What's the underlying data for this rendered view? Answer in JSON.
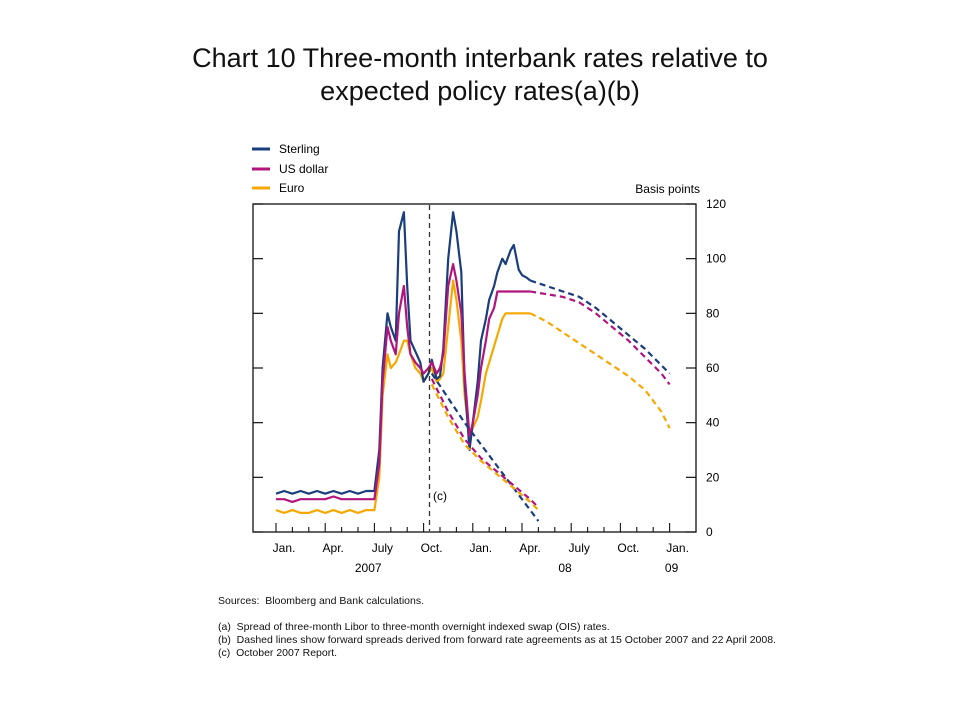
{
  "title_line1": "Chart 10  Three-month interbank rates relative to",
  "title_line2": "expected policy rates(a)(b)",
  "chart_data": {
    "type": "line",
    "ylabel": "Basis points",
    "ylim": [
      0,
      120
    ],
    "yticks": [
      0,
      20,
      40,
      60,
      80,
      100,
      120
    ],
    "x_axis": {
      "month_labels": [
        "Jan.",
        "Apr.",
        "July",
        "Oct.",
        "Jan.",
        "Apr.",
        "July",
        "Oct.",
        "Jan."
      ],
      "year_labels": [
        "2007",
        "08",
        "09"
      ]
    },
    "legend": {
      "placement": "top-left"
    },
    "annotation": "(c)",
    "series": [
      {
        "name": "Sterling",
        "color": "#1a3d7c",
        "x": [
          0,
          0.5,
          1,
          1.5,
          2,
          2.5,
          3,
          3.5,
          4,
          4.5,
          5,
          5.5,
          6,
          6.3,
          6.5,
          6.8,
          7,
          7.3,
          7.5,
          7.8,
          8,
          8.2,
          8.5,
          8.8,
          9,
          9.3,
          9.5,
          9.8,
          10,
          10.2,
          10.5,
          10.8,
          11,
          11.3,
          11.5,
          11.8,
          12,
          12.3,
          12.5,
          12.8,
          13,
          13.3,
          13.5,
          13.8,
          14,
          14.3,
          14.5,
          14.8,
          15,
          15.3,
          15.5
        ],
        "y": [
          14,
          15,
          14,
          15,
          14,
          15,
          14,
          15,
          14,
          15,
          14,
          15,
          15,
          30,
          60,
          80,
          75,
          70,
          110,
          117,
          90,
          70,
          66,
          62,
          55,
          58,
          63,
          56,
          57,
          67,
          100,
          117,
          110,
          95,
          55,
          30,
          40,
          55,
          70,
          78,
          85,
          90,
          95,
          100,
          98,
          103,
          105,
          96,
          94,
          93,
          92
        ]
      },
      {
        "name": "US dollar",
        "color": "#b0157e",
        "x": [
          0,
          0.5,
          1,
          1.5,
          2,
          2.5,
          3,
          3.5,
          4,
          4.5,
          5,
          5.5,
          6,
          6.3,
          6.5,
          6.8,
          7,
          7.3,
          7.5,
          7.8,
          8,
          8.2,
          8.5,
          8.8,
          9,
          9.3,
          9.5,
          9.8,
          10,
          10.2,
          10.5,
          10.8,
          11,
          11.3,
          11.5,
          11.8,
          12,
          12.3,
          12.5,
          12.8,
          13,
          13.3,
          13.5,
          13.8,
          14,
          14.3,
          14.5,
          14.8,
          15,
          15.3,
          15.5
        ],
        "y": [
          12,
          12,
          11,
          12,
          12,
          12,
          12,
          13,
          12,
          12,
          12,
          12,
          12,
          25,
          55,
          75,
          70,
          65,
          80,
          90,
          75,
          65,
          62,
          60,
          58,
          60,
          62,
          58,
          60,
          65,
          90,
          98,
          92,
          80,
          58,
          35,
          40,
          50,
          60,
          70,
          78,
          82,
          88,
          88,
          88,
          88,
          88,
          88,
          88,
          88,
          88
        ]
      },
      {
        "name": "Euro",
        "color": "#f5a800",
        "x": [
          0,
          0.5,
          1,
          1.5,
          2,
          2.5,
          3,
          3.5,
          4,
          4.5,
          5,
          5.5,
          6,
          6.3,
          6.5,
          6.8,
          7,
          7.3,
          7.5,
          7.8,
          8,
          8.2,
          8.5,
          8.8,
          9,
          9.3,
          9.5,
          9.8,
          10,
          10.2,
          10.5,
          10.8,
          11,
          11.3,
          11.5,
          11.8,
          12,
          12.3,
          12.5,
          12.8,
          13,
          13.3,
          13.5,
          13.8,
          14,
          14.3,
          14.5,
          14.8,
          15,
          15.3,
          15.5
        ],
        "y": [
          8,
          7,
          8,
          7,
          7,
          8,
          7,
          8,
          7,
          8,
          7,
          8,
          8,
          20,
          50,
          65,
          60,
          62,
          65,
          70,
          70,
          65,
          60,
          58,
          55,
          58,
          60,
          55,
          56,
          58,
          75,
          92,
          85,
          70,
          50,
          35,
          38,
          42,
          48,
          58,
          62,
          68,
          72,
          78,
          80,
          80,
          80,
          80,
          80,
          80,
          80
        ]
      }
    ],
    "forward_series": [
      {
        "name": "Sterling",
        "color": "#1a3d7c",
        "x": [
          9.5,
          10.5,
          11.5,
          12.5,
          13.5,
          14.5,
          15.5,
          16
        ],
        "y": [
          58,
          49,
          40,
          32,
          24,
          16,
          8,
          4
        ]
      },
      {
        "name": "US dollar",
        "color": "#b0157e",
        "x": [
          9.5,
          10.5,
          11.5,
          12.5,
          13.5,
          14.5,
          15.5,
          16
        ],
        "y": [
          56,
          44,
          34,
          27,
          22,
          17,
          12,
          9
        ]
      },
      {
        "name": "Euro",
        "color": "#f5a800",
        "x": [
          9.5,
          10.5,
          11.5,
          12.5,
          13.5,
          14.5,
          15.5,
          16
        ],
        "y": [
          54,
          42,
          32,
          26,
          21,
          16,
          11,
          8
        ]
      },
      {
        "name": "Sterling",
        "color": "#1a3d7c",
        "x": [
          15.5,
          16.5,
          17.5,
          18.5,
          19.5,
          20.5,
          21.5,
          22.5,
          23.5,
          24
        ],
        "y": [
          92,
          90,
          88,
          86,
          82,
          77,
          72,
          67,
          61,
          58
        ]
      },
      {
        "name": "US dollar",
        "color": "#b0157e",
        "x": [
          15.5,
          16.5,
          17.5,
          18.5,
          19.5,
          20.5,
          21.5,
          22.5,
          23.5,
          24
        ],
        "y": [
          88,
          87,
          86,
          84,
          80,
          75,
          70,
          64,
          58,
          54
        ]
      },
      {
        "name": "Euro",
        "color": "#f5a800",
        "x": [
          15.5,
          16.5,
          17.5,
          18.5,
          19.5,
          20.5,
          21.5,
          22.5,
          23.5,
          24
        ],
        "y": [
          80,
          77,
          73,
          69,
          65,
          61,
          57,
          52,
          44,
          38
        ]
      }
    ]
  },
  "notes": {
    "sources": "Sources:  Bloomberg and Bank calculations.",
    "a": "(a)  Spread of three-month Libor to three-month overnight indexed swap (OIS) rates.",
    "b": "(b)  Dashed lines show forward spreads derived from forward rate agreements as at 15 October 2007 and 22 April 2008.",
    "c": "(c)  October 2007 Report."
  }
}
